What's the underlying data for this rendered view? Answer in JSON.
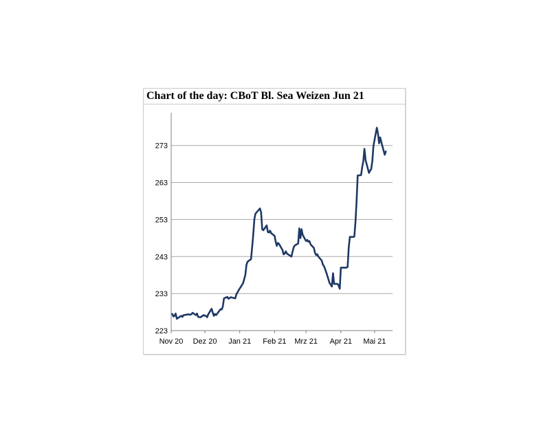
{
  "chart_data": {
    "type": "line",
    "title": "Chart of the day: CBoT Bl. Sea Weizen Jun 21",
    "xlabel": "",
    "ylabel": "",
    "x_ticks": [
      "Nov 20",
      "Dez 20",
      "Jan 21",
      "Feb 21",
      "Mrz 21",
      "Apr 21",
      "Mai 21"
    ],
    "y_ticks": [
      223,
      233,
      243,
      253,
      263,
      273
    ],
    "ylim": [
      223,
      280
    ],
    "grid": "horizontal",
    "line_color": "#1f3864",
    "series": [
      {
        "values": [
          [
            "2020-11-02",
            227.5
          ],
          [
            "2020-11-03",
            226.8
          ],
          [
            "2020-11-04",
            227.0
          ],
          [
            "2020-11-05",
            227.6
          ],
          [
            "2020-11-06",
            226.2
          ],
          [
            "2020-11-09",
            226.8
          ],
          [
            "2020-11-10",
            227.0
          ],
          [
            "2020-11-11",
            226.7
          ],
          [
            "2020-11-12",
            227.2
          ],
          [
            "2020-11-13",
            227.2
          ],
          [
            "2020-11-16",
            227.4
          ],
          [
            "2020-11-17",
            227.3
          ],
          [
            "2020-11-18",
            227.3
          ],
          [
            "2020-11-19",
            227.4
          ],
          [
            "2020-11-20",
            227.8
          ],
          [
            "2020-11-23",
            227.2
          ],
          [
            "2020-11-24",
            227.6
          ],
          [
            "2020-11-25",
            226.7
          ],
          [
            "2020-11-27",
            226.6
          ],
          [
            "2020-11-30",
            227.2
          ],
          [
            "2020-12-01",
            227.0
          ],
          [
            "2020-12-02",
            227.0
          ],
          [
            "2020-12-03",
            226.6
          ],
          [
            "2020-12-04",
            227.4
          ],
          [
            "2020-12-07",
            228.9
          ],
          [
            "2020-12-08",
            227.8
          ],
          [
            "2020-12-09",
            227.0
          ],
          [
            "2020-12-10",
            227.5
          ],
          [
            "2020-12-11",
            227.2
          ],
          [
            "2020-12-14",
            228.4
          ],
          [
            "2020-12-15",
            228.8
          ],
          [
            "2020-12-16",
            228.7
          ],
          [
            "2020-12-17",
            229.6
          ],
          [
            "2020-12-18",
            231.7
          ],
          [
            "2020-12-21",
            232.1
          ],
          [
            "2020-12-22",
            231.6
          ],
          [
            "2020-12-23",
            231.8
          ],
          [
            "2020-12-24",
            232.0
          ],
          [
            "2020-12-28",
            231.7
          ],
          [
            "2020-12-29",
            232.8
          ],
          [
            "2020-12-30",
            233.3
          ],
          [
            "2020-12-31",
            233.9
          ],
          [
            "2021-01-04",
            235.8
          ],
          [
            "2021-01-05",
            236.9
          ],
          [
            "2021-01-06",
            238.1
          ],
          [
            "2021-01-07",
            240.8
          ],
          [
            "2021-01-08",
            241.6
          ],
          [
            "2021-01-11",
            242.3
          ],
          [
            "2021-01-12",
            245.4
          ],
          [
            "2021-01-13",
            248.8
          ],
          [
            "2021-01-14",
            253.1
          ],
          [
            "2021-01-15",
            254.6
          ],
          [
            "2021-01-19",
            256.0
          ],
          [
            "2021-01-20",
            254.9
          ],
          [
            "2021-01-21",
            250.4
          ],
          [
            "2021-01-22",
            250.1
          ],
          [
            "2021-01-25",
            251.4
          ],
          [
            "2021-01-26",
            249.6
          ],
          [
            "2021-01-27",
            249.5
          ],
          [
            "2021-01-28",
            250.0
          ],
          [
            "2021-01-29",
            249.3
          ],
          [
            "2021-02-01",
            248.6
          ],
          [
            "2021-02-02",
            247.0
          ],
          [
            "2021-02-03",
            245.9
          ],
          [
            "2021-02-04",
            246.7
          ],
          [
            "2021-02-05",
            246.4
          ],
          [
            "2021-02-08",
            244.8
          ],
          [
            "2021-02-09",
            243.6
          ],
          [
            "2021-02-10",
            243.8
          ],
          [
            "2021-02-11",
            244.4
          ],
          [
            "2021-02-12",
            243.8
          ],
          [
            "2021-02-16",
            243.0
          ],
          [
            "2021-02-17",
            244.3
          ],
          [
            "2021-02-18",
            245.5
          ],
          [
            "2021-02-19",
            246.0
          ],
          [
            "2021-02-22",
            246.5
          ],
          [
            "2021-02-23",
            250.6
          ],
          [
            "2021-02-24",
            248.0
          ],
          [
            "2021-02-25",
            250.4
          ],
          [
            "2021-02-26",
            248.9
          ],
          [
            "2021-03-01",
            247.2
          ],
          [
            "2021-03-02",
            247.5
          ],
          [
            "2021-03-03",
            247.0
          ],
          [
            "2021-03-04",
            247.2
          ],
          [
            "2021-03-05",
            246.3
          ],
          [
            "2021-03-08",
            245.3
          ],
          [
            "2021-03-09",
            244.0
          ],
          [
            "2021-03-10",
            243.4
          ],
          [
            "2021-03-11",
            243.6
          ],
          [
            "2021-03-12",
            243.0
          ],
          [
            "2021-03-15",
            241.9
          ],
          [
            "2021-03-16",
            240.8
          ],
          [
            "2021-03-17",
            240.4
          ],
          [
            "2021-03-18",
            239.6
          ],
          [
            "2021-03-19",
            238.7
          ],
          [
            "2021-03-22",
            235.8
          ],
          [
            "2021-03-23",
            235.4
          ],
          [
            "2021-03-24",
            234.9
          ],
          [
            "2021-03-25",
            238.5
          ],
          [
            "2021-03-26",
            235.6
          ],
          [
            "2021-03-29",
            235.6
          ],
          [
            "2021-03-30",
            235.2
          ],
          [
            "2021-03-31",
            234.3
          ],
          [
            "2021-04-01",
            240.0
          ],
          [
            "2021-04-05",
            240.0
          ],
          [
            "2021-04-06",
            240.0
          ],
          [
            "2021-04-07",
            240.2
          ],
          [
            "2021-04-08",
            245.5
          ],
          [
            "2021-04-09",
            248.3
          ],
          [
            "2021-04-12",
            248.3
          ],
          [
            "2021-04-13",
            248.4
          ],
          [
            "2021-04-14",
            252.5
          ],
          [
            "2021-04-15",
            258.1
          ],
          [
            "2021-04-16",
            264.9
          ],
          [
            "2021-04-19",
            265.0
          ],
          [
            "2021-04-20",
            267.2
          ],
          [
            "2021-04-21",
            268.8
          ],
          [
            "2021-04-22",
            272.1
          ],
          [
            "2021-04-23",
            269.0
          ],
          [
            "2021-04-26",
            265.6
          ],
          [
            "2021-04-27",
            266.2
          ],
          [
            "2021-04-28",
            266.6
          ],
          [
            "2021-04-29",
            268.8
          ],
          [
            "2021-04-30",
            272.9
          ],
          [
            "2021-05-03",
            277.8
          ],
          [
            "2021-05-04",
            276.2
          ],
          [
            "2021-05-05",
            273.6
          ],
          [
            "2021-05-06",
            275.2
          ],
          [
            "2021-05-07",
            273.9
          ],
          [
            "2021-05-10",
            270.5
          ],
          [
            "2021-05-11",
            271.4
          ]
        ]
      }
    ]
  }
}
